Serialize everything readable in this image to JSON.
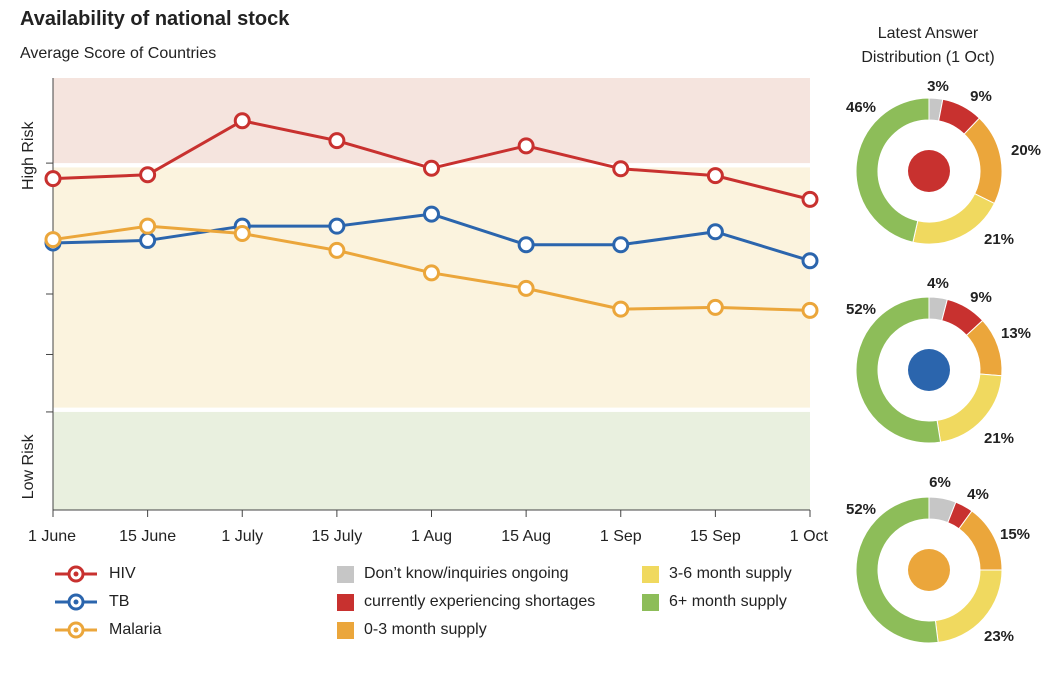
{
  "title": "Availability of national stock",
  "subtitle": "Average Score of Countries",
  "donut_title_line1": "Latest Answer",
  "donut_title_line2": "Distribution (1 Oct)",
  "colors": {
    "high_risk_band": "#f5e4de",
    "mid_band": "#fbf3de",
    "low_risk_band": "#e9f0df",
    "dont_know": "#c6c6c6",
    "shortages": "#c8312f",
    "supply_0_3": "#eba63b",
    "supply_3_6": "#f0d95f",
    "supply_6_plus": "#8dbd59"
  },
  "status_legend": [
    {
      "label": "Don’t know/inquiries ongoing",
      "color_key": "dont_know"
    },
    {
      "label": "currently experiencing shortages",
      "color_key": "shortages"
    },
    {
      "label": "0-3 month supply",
      "color_key": "supply_0_3"
    },
    {
      "label": "3-6 month supply",
      "color_key": "supply_3_6"
    },
    {
      "label": "6+ month supply",
      "color_key": "supply_6_plus"
    }
  ],
  "chart_data": [
    {
      "type": "line",
      "title": "Availability of national stock",
      "subtitle": "Average Score of Countries",
      "y_band_labels": [
        "High Risk",
        "Low Risk"
      ],
      "ylim": [
        0,
        1
      ],
      "y_direction": "high risk at top",
      "grid": false,
      "legend_placement": "bottom-left",
      "x": [
        "1 June",
        "15 June",
        "1 July",
        "15 July",
        "1 Aug",
        "15 Aug",
        "1 Sep",
        "15 Sep",
        "1 Oct"
      ],
      "series": [
        {
          "name": "HIV",
          "color": "#c8312f",
          "values": [
            0.767,
            0.776,
            0.901,
            0.855,
            0.791,
            0.843,
            0.79,
            0.774,
            0.719
          ]
        },
        {
          "name": "TB",
          "color": "#2b65ad",
          "values": [
            0.618,
            0.624,
            0.657,
            0.657,
            0.685,
            0.614,
            0.614,
            0.644,
            0.577
          ]
        },
        {
          "name": "Malaria",
          "color": "#eba63b",
          "values": [
            0.626,
            0.657,
            0.64,
            0.601,
            0.549,
            0.513,
            0.465,
            0.469,
            0.462
          ]
        }
      ]
    },
    {
      "type": "pie",
      "title": "HIV",
      "center_color": "#c8312f",
      "labels": [
        "Don’t know/inquiries ongoing",
        "currently experiencing shortages",
        "0-3 month supply",
        "3-6 month supply",
        "6+ month supply"
      ],
      "values": [
        3,
        9,
        20,
        21,
        46
      ],
      "value_labels": [
        "3%",
        "9%",
        "20%",
        "21%",
        "46%"
      ]
    },
    {
      "type": "pie",
      "title": "TB",
      "center_color": "#2b65ad",
      "labels": [
        "Don’t know/inquiries ongoing",
        "currently experiencing shortages",
        "0-3 month supply",
        "3-6 month supply",
        "6+ month supply"
      ],
      "values": [
        4,
        9,
        13,
        21,
        52
      ],
      "value_labels": [
        "4%",
        "9%",
        "13%",
        "21%",
        "52%"
      ]
    },
    {
      "type": "pie",
      "title": "Malaria",
      "center_color": "#eba63b",
      "labels": [
        "Don’t know/inquiries ongoing",
        "currently experiencing shortages",
        "0-3 month supply",
        "3-6 month supply",
        "6+ month supply"
      ],
      "values": [
        6,
        4,
        15,
        23,
        52
      ],
      "value_labels": [
        "6%",
        "4%",
        "15%",
        "23%",
        "52%"
      ]
    }
  ]
}
